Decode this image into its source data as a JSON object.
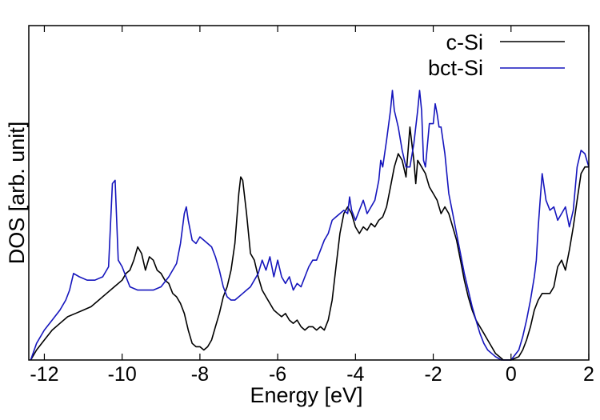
{
  "chart_data": {
    "type": "line",
    "title": "",
    "xlabel": "Energy [eV]",
    "ylabel": "DOS [arb. unit]",
    "xlim": [
      -12.4,
      2
    ],
    "ylim": [
      0,
      1
    ],
    "x_ticks": [
      -12,
      -10,
      -8,
      -6,
      -4,
      -2,
      0,
      2
    ],
    "x_tick_labels": [
      "-12",
      "-10",
      "-8",
      "-6",
      "-4",
      "-2",
      "0",
      "2"
    ],
    "y_tick_labels_shown": false,
    "grid": false,
    "legend_position": "top-right",
    "series": [
      {
        "name": "c-Si",
        "color": "#000000",
        "points": [
          [
            -12.35,
            0.0
          ],
          [
            -12.2,
            0.03
          ],
          [
            -12.0,
            0.06
          ],
          [
            -11.8,
            0.09
          ],
          [
            -11.6,
            0.11
          ],
          [
            -11.4,
            0.13
          ],
          [
            -11.2,
            0.14
          ],
          [
            -11.0,
            0.15
          ],
          [
            -10.8,
            0.16
          ],
          [
            -10.6,
            0.18
          ],
          [
            -10.4,
            0.2
          ],
          [
            -10.2,
            0.22
          ],
          [
            -10.0,
            0.24
          ],
          [
            -9.9,
            0.26
          ],
          [
            -9.8,
            0.27
          ],
          [
            -9.7,
            0.3
          ],
          [
            -9.6,
            0.34
          ],
          [
            -9.5,
            0.32
          ],
          [
            -9.4,
            0.27
          ],
          [
            -9.3,
            0.31
          ],
          [
            -9.2,
            0.3
          ],
          [
            -9.1,
            0.27
          ],
          [
            -9.0,
            0.26
          ],
          [
            -8.9,
            0.24
          ],
          [
            -8.8,
            0.23
          ],
          [
            -8.7,
            0.2
          ],
          [
            -8.6,
            0.19
          ],
          [
            -8.5,
            0.17
          ],
          [
            -8.4,
            0.14
          ],
          [
            -8.3,
            0.09
          ],
          [
            -8.2,
            0.05
          ],
          [
            -8.1,
            0.04
          ],
          [
            -8.0,
            0.04
          ],
          [
            -7.9,
            0.03
          ],
          [
            -7.8,
            0.04
          ],
          [
            -7.7,
            0.06
          ],
          [
            -7.6,
            0.1
          ],
          [
            -7.5,
            0.14
          ],
          [
            -7.4,
            0.19
          ],
          [
            -7.3,
            0.22
          ],
          [
            -7.2,
            0.27
          ],
          [
            -7.1,
            0.35
          ],
          [
            -7.0,
            0.5
          ],
          [
            -6.95,
            0.55
          ],
          [
            -6.9,
            0.54
          ],
          [
            -6.8,
            0.44
          ],
          [
            -6.7,
            0.32
          ],
          [
            -6.6,
            0.3
          ],
          [
            -6.5,
            0.25
          ],
          [
            -6.4,
            0.21
          ],
          [
            -6.3,
            0.19
          ],
          [
            -6.2,
            0.17
          ],
          [
            -6.1,
            0.15
          ],
          [
            -6.0,
            0.14
          ],
          [
            -5.9,
            0.13
          ],
          [
            -5.8,
            0.14
          ],
          [
            -5.7,
            0.12
          ],
          [
            -5.6,
            0.11
          ],
          [
            -5.5,
            0.12
          ],
          [
            -5.4,
            0.1
          ],
          [
            -5.3,
            0.09
          ],
          [
            -5.2,
            0.1
          ],
          [
            -5.1,
            0.1
          ],
          [
            -5.0,
            0.09
          ],
          [
            -4.9,
            0.1
          ],
          [
            -4.8,
            0.09
          ],
          [
            -4.7,
            0.12
          ],
          [
            -4.6,
            0.18
          ],
          [
            -4.5,
            0.28
          ],
          [
            -4.4,
            0.38
          ],
          [
            -4.3,
            0.44
          ],
          [
            -4.2,
            0.46
          ],
          [
            -4.1,
            0.44
          ],
          [
            -4.0,
            0.4
          ],
          [
            -3.9,
            0.38
          ],
          [
            -3.8,
            0.4
          ],
          [
            -3.7,
            0.39
          ],
          [
            -3.6,
            0.41
          ],
          [
            -3.5,
            0.4
          ],
          [
            -3.4,
            0.42
          ],
          [
            -3.3,
            0.43
          ],
          [
            -3.2,
            0.46
          ],
          [
            -3.1,
            0.52
          ],
          [
            -3.0,
            0.58
          ],
          [
            -2.9,
            0.62
          ],
          [
            -2.8,
            0.6
          ],
          [
            -2.7,
            0.55
          ],
          [
            -2.6,
            0.7
          ],
          [
            -2.5,
            0.6
          ],
          [
            -2.45,
            0.53
          ],
          [
            -2.4,
            0.6
          ],
          [
            -2.3,
            0.58
          ],
          [
            -2.2,
            0.56
          ],
          [
            -2.1,
            0.52
          ],
          [
            -2.0,
            0.5
          ],
          [
            -1.9,
            0.48
          ],
          [
            -1.8,
            0.44
          ],
          [
            -1.7,
            0.46
          ],
          [
            -1.6,
            0.44
          ],
          [
            -1.5,
            0.4
          ],
          [
            -1.4,
            0.36
          ],
          [
            -1.3,
            0.3
          ],
          [
            -1.2,
            0.24
          ],
          [
            -1.1,
            0.19
          ],
          [
            -1.0,
            0.15
          ],
          [
            -0.9,
            0.12
          ],
          [
            -0.8,
            0.1
          ],
          [
            -0.7,
            0.08
          ],
          [
            -0.6,
            0.06
          ],
          [
            -0.5,
            0.04
          ],
          [
            -0.4,
            0.02
          ],
          [
            -0.3,
            0.01
          ],
          [
            -0.2,
            0.0
          ],
          [
            0.0,
            0.0
          ],
          [
            0.2,
            0.01
          ],
          [
            0.3,
            0.03
          ],
          [
            0.4,
            0.06
          ],
          [
            0.5,
            0.1
          ],
          [
            0.6,
            0.15
          ],
          [
            0.7,
            0.18
          ],
          [
            0.8,
            0.2
          ],
          [
            1.0,
            0.2
          ],
          [
            1.1,
            0.22
          ],
          [
            1.2,
            0.28
          ],
          [
            1.3,
            0.3
          ],
          [
            1.4,
            0.27
          ],
          [
            1.5,
            0.33
          ],
          [
            1.6,
            0.4
          ],
          [
            1.7,
            0.48
          ],
          [
            1.8,
            0.56
          ],
          [
            1.9,
            0.58
          ],
          [
            2.0,
            0.58
          ]
        ]
      },
      {
        "name": "bct-Si",
        "color": "#1515bd",
        "points": [
          [
            -12.35,
            0.0
          ],
          [
            -12.2,
            0.05
          ],
          [
            -12.0,
            0.09
          ],
          [
            -11.8,
            0.12
          ],
          [
            -11.6,
            0.15
          ],
          [
            -11.45,
            0.18
          ],
          [
            -11.35,
            0.21
          ],
          [
            -11.25,
            0.26
          ],
          [
            -11.1,
            0.25
          ],
          [
            -10.9,
            0.24
          ],
          [
            -10.7,
            0.24
          ],
          [
            -10.5,
            0.25
          ],
          [
            -10.35,
            0.28
          ],
          [
            -10.25,
            0.53
          ],
          [
            -10.18,
            0.54
          ],
          [
            -10.1,
            0.3
          ],
          [
            -10.0,
            0.28
          ],
          [
            -9.9,
            0.25
          ],
          [
            -9.8,
            0.22
          ],
          [
            -9.6,
            0.21
          ],
          [
            -9.4,
            0.21
          ],
          [
            -9.2,
            0.21
          ],
          [
            -9.0,
            0.22
          ],
          [
            -8.8,
            0.25
          ],
          [
            -8.6,
            0.29
          ],
          [
            -8.5,
            0.35
          ],
          [
            -8.4,
            0.44
          ],
          [
            -8.35,
            0.46
          ],
          [
            -8.3,
            0.42
          ],
          [
            -8.2,
            0.36
          ],
          [
            -8.1,
            0.35
          ],
          [
            -8.0,
            0.37
          ],
          [
            -7.9,
            0.36
          ],
          [
            -7.8,
            0.35
          ],
          [
            -7.7,
            0.34
          ],
          [
            -7.6,
            0.31
          ],
          [
            -7.5,
            0.27
          ],
          [
            -7.4,
            0.22
          ],
          [
            -7.3,
            0.19
          ],
          [
            -7.2,
            0.18
          ],
          [
            -7.1,
            0.18
          ],
          [
            -7.0,
            0.19
          ],
          [
            -6.9,
            0.2
          ],
          [
            -6.8,
            0.21
          ],
          [
            -6.7,
            0.22
          ],
          [
            -6.6,
            0.24
          ],
          [
            -6.5,
            0.26
          ],
          [
            -6.4,
            0.3
          ],
          [
            -6.3,
            0.27
          ],
          [
            -6.2,
            0.31
          ],
          [
            -6.1,
            0.25
          ],
          [
            -6.0,
            0.3
          ],
          [
            -5.9,
            0.25
          ],
          [
            -5.8,
            0.23
          ],
          [
            -5.7,
            0.25
          ],
          [
            -5.6,
            0.21
          ],
          [
            -5.5,
            0.23
          ],
          [
            -5.4,
            0.22
          ],
          [
            -5.3,
            0.25
          ],
          [
            -5.2,
            0.28
          ],
          [
            -5.1,
            0.3
          ],
          [
            -5.0,
            0.3
          ],
          [
            -4.9,
            0.33
          ],
          [
            -4.8,
            0.36
          ],
          [
            -4.7,
            0.38
          ],
          [
            -4.6,
            0.42
          ],
          [
            -4.5,
            0.43
          ],
          [
            -4.4,
            0.44
          ],
          [
            -4.3,
            0.45
          ],
          [
            -4.2,
            0.44
          ],
          [
            -4.15,
            0.49
          ],
          [
            -4.1,
            0.45
          ],
          [
            -4.0,
            0.42
          ],
          [
            -3.9,
            0.45
          ],
          [
            -3.8,
            0.48
          ],
          [
            -3.7,
            0.44
          ],
          [
            -3.6,
            0.46
          ],
          [
            -3.5,
            0.48
          ],
          [
            -3.4,
            0.54
          ],
          [
            -3.35,
            0.6
          ],
          [
            -3.3,
            0.58
          ],
          [
            -3.2,
            0.66
          ],
          [
            -3.1,
            0.75
          ],
          [
            -3.05,
            0.81
          ],
          [
            -3.0,
            0.75
          ],
          [
            -2.9,
            0.7
          ],
          [
            -2.8,
            0.63
          ],
          [
            -2.7,
            0.58
          ],
          [
            -2.6,
            0.58
          ],
          [
            -2.5,
            0.65
          ],
          [
            -2.4,
            0.75
          ],
          [
            -2.35,
            0.81
          ],
          [
            -2.3,
            0.75
          ],
          [
            -2.25,
            0.6
          ],
          [
            -2.2,
            0.58
          ],
          [
            -2.1,
            0.71
          ],
          [
            -2.0,
            0.71
          ],
          [
            -1.95,
            0.77
          ],
          [
            -1.9,
            0.74
          ],
          [
            -1.85,
            0.7
          ],
          [
            -1.8,
            0.7
          ],
          [
            -1.7,
            0.62
          ],
          [
            -1.6,
            0.5
          ],
          [
            -1.5,
            0.44
          ],
          [
            -1.4,
            0.38
          ],
          [
            -1.3,
            0.32
          ],
          [
            -1.2,
            0.26
          ],
          [
            -1.1,
            0.21
          ],
          [
            -1.0,
            0.16
          ],
          [
            -0.9,
            0.12
          ],
          [
            -0.8,
            0.08
          ],
          [
            -0.7,
            0.05
          ],
          [
            -0.6,
            0.03
          ],
          [
            -0.5,
            0.02
          ],
          [
            -0.4,
            0.01
          ],
          [
            -0.25,
            0.0
          ],
          [
            0.0,
            0.0
          ],
          [
            0.2,
            0.03
          ],
          [
            0.3,
            0.07
          ],
          [
            0.4,
            0.12
          ],
          [
            0.5,
            0.18
          ],
          [
            0.6,
            0.25
          ],
          [
            0.65,
            0.3
          ],
          [
            0.7,
            0.4
          ],
          [
            0.75,
            0.48
          ],
          [
            0.8,
            0.56
          ],
          [
            0.9,
            0.48
          ],
          [
            1.0,
            0.45
          ],
          [
            1.1,
            0.46
          ],
          [
            1.2,
            0.42
          ],
          [
            1.3,
            0.44
          ],
          [
            1.4,
            0.46
          ],
          [
            1.5,
            0.4
          ],
          [
            1.6,
            0.45
          ],
          [
            1.7,
            0.58
          ],
          [
            1.8,
            0.63
          ],
          [
            1.9,
            0.62
          ],
          [
            2.0,
            0.58
          ]
        ]
      }
    ]
  }
}
